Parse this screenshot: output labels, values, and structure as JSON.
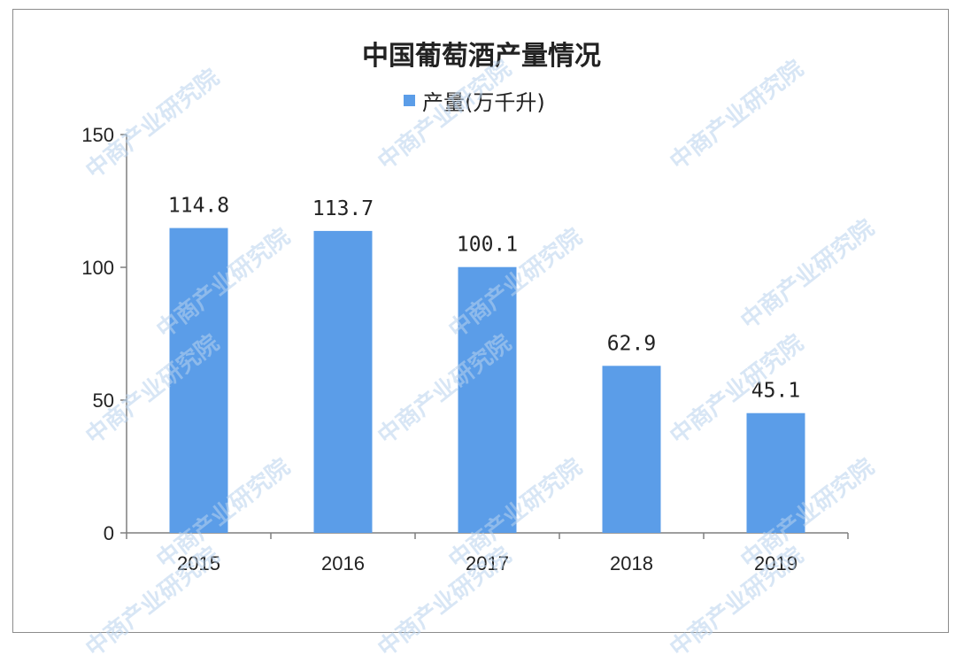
{
  "chart_data": {
    "type": "bar",
    "title": "中国葡萄酒产量情况",
    "categories": [
      "2015",
      "2016",
      "2017",
      "2018",
      "2019"
    ],
    "series": [
      {
        "name": "产量(万千升)",
        "values": [
          114.8,
          113.7,
          100.1,
          62.9,
          45.1
        ]
      }
    ],
    "data_labels": [
      "114.8",
      "113.7",
      "100.1",
      "62.9",
      "45.1"
    ],
    "y_ticks": [
      "0",
      "50",
      "100",
      "150"
    ],
    "ylim": [
      0,
      150
    ],
    "grid": false,
    "legend_position": "top-center",
    "bar_color": "#5b9de8"
  },
  "watermark": "中商产业研究院"
}
